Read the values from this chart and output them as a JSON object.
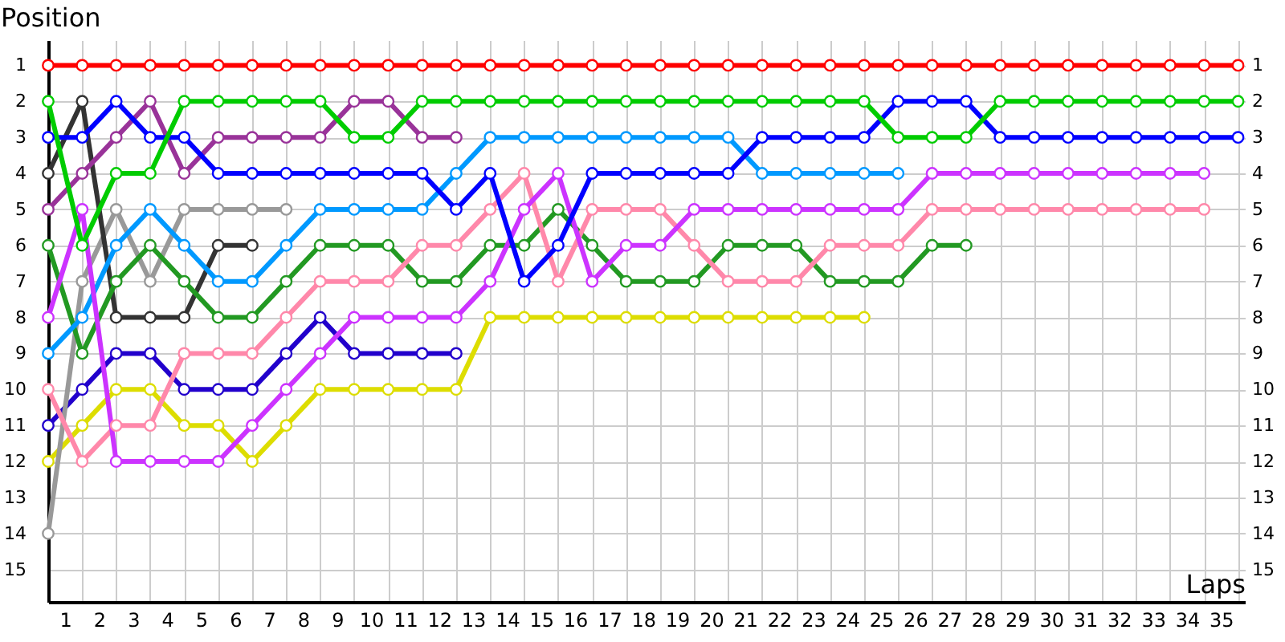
{
  "chart_data": {
    "type": "line",
    "xlabel": "Laps",
    "ylabel": "Position",
    "x": [
      0,
      1,
      2,
      3,
      4,
      5,
      6,
      7,
      8,
      9,
      10,
      11,
      12,
      13,
      14,
      15,
      16,
      17,
      18,
      19,
      20,
      21,
      22,
      23,
      24,
      25,
      26,
      27,
      28,
      29,
      30,
      31,
      32,
      33,
      34,
      35
    ],
    "series": [
      {
        "color": "#2200cc",
        "values": [
          11,
          10,
          9,
          9,
          10,
          10,
          10,
          9,
          8,
          9,
          9,
          9,
          9,
          null,
          null,
          null,
          null,
          null,
          null,
          null,
          null,
          null,
          null,
          null,
          null,
          null,
          null,
          null,
          null,
          null,
          null,
          null,
          null,
          null,
          null,
          null
        ]
      },
      {
        "color": "#dddd00",
        "values": [
          12,
          11,
          10,
          10,
          11,
          11,
          12,
          11,
          10,
          10,
          10,
          10,
          10,
          8,
          8,
          8,
          8,
          8,
          8,
          8,
          8,
          8,
          8,
          8,
          8,
          null,
          null,
          null,
          null,
          null,
          null,
          null,
          null,
          null,
          null,
          null
        ]
      },
      {
        "color": "#999999",
        "values": [
          14,
          7,
          5,
          7,
          5,
          5,
          5,
          5,
          null,
          null,
          null,
          null,
          null,
          null,
          null,
          null,
          null,
          null,
          null,
          null,
          null,
          null,
          null,
          null,
          null,
          null,
          null,
          null,
          null,
          null,
          null,
          null,
          null,
          null,
          null,
          null
        ]
      },
      {
        "color": "#333333",
        "values": [
          4,
          2,
          8,
          8,
          8,
          6,
          6,
          null,
          null,
          null,
          null,
          null,
          null,
          null,
          null,
          null,
          null,
          null,
          null,
          null,
          null,
          null,
          null,
          null,
          null,
          null,
          null,
          null,
          null,
          null,
          null,
          null,
          null,
          null,
          null,
          null
        ]
      },
      {
        "color": "#993399",
        "values": [
          5,
          4,
          3,
          2,
          4,
          3,
          3,
          3,
          3,
          2,
          2,
          3,
          3,
          null,
          null,
          null,
          null,
          null,
          null,
          null,
          null,
          null,
          null,
          null,
          null,
          null,
          null,
          null,
          null,
          null,
          null,
          null,
          null,
          null,
          null,
          null
        ]
      },
      {
        "color": "#229922",
        "values": [
          6,
          9,
          7,
          6,
          7,
          8,
          8,
          7,
          6,
          6,
          6,
          7,
          7,
          6,
          6,
          5,
          6,
          7,
          7,
          7,
          6,
          6,
          6,
          7,
          7,
          7,
          6,
          6,
          null,
          null,
          null,
          null,
          null,
          null,
          null,
          null
        ]
      },
      {
        "color": "#0099ff",
        "values": [
          9,
          8,
          6,
          5,
          6,
          7,
          7,
          6,
          5,
          5,
          5,
          5,
          4,
          3,
          3,
          3,
          3,
          3,
          3,
          3,
          3,
          4,
          4,
          4,
          4,
          4,
          null,
          null,
          null,
          null,
          null,
          null,
          null,
          null,
          null,
          null
        ]
      },
      {
        "color": "#ff88aa",
        "values": [
          10,
          12,
          11,
          11,
          9,
          9,
          9,
          8,
          7,
          7,
          7,
          6,
          6,
          5,
          4,
          7,
          5,
          5,
          5,
          6,
          7,
          7,
          7,
          6,
          6,
          6,
          5,
          5,
          5,
          5,
          5,
          5,
          5,
          5,
          5,
          null
        ]
      },
      {
        "color": "#cc33ff",
        "values": [
          8,
          5,
          12,
          12,
          12,
          12,
          11,
          10,
          9,
          8,
          8,
          8,
          8,
          7,
          5,
          4,
          7,
          6,
          6,
          5,
          5,
          5,
          5,
          5,
          5,
          5,
          4,
          4,
          4,
          4,
          4,
          4,
          4,
          4,
          4,
          null
        ]
      },
      {
        "color": "#0000ff",
        "values": [
          3,
          3,
          2,
          3,
          3,
          4,
          4,
          4,
          4,
          4,
          4,
          4,
          5,
          4,
          7,
          6,
          4,
          4,
          4,
          4,
          4,
          3,
          3,
          3,
          3,
          2,
          2,
          2,
          3,
          3,
          3,
          3,
          3,
          3,
          3,
          3
        ]
      },
      {
        "color": "#00cc00",
        "values": [
          2,
          6,
          4,
          4,
          2,
          2,
          2,
          2,
          2,
          3,
          3,
          2,
          2,
          2,
          2,
          2,
          2,
          2,
          2,
          2,
          2,
          2,
          2,
          2,
          2,
          3,
          3,
          3,
          2,
          2,
          2,
          2,
          2,
          2,
          2,
          2
        ]
      },
      {
        "color": "#ff0000",
        "values": [
          1,
          1,
          1,
          1,
          1,
          1,
          1,
          1,
          1,
          1,
          1,
          1,
          1,
          1,
          1,
          1,
          1,
          1,
          1,
          1,
          1,
          1,
          1,
          1,
          1,
          1,
          1,
          1,
          1,
          1,
          1,
          1,
          1,
          1,
          1,
          1
        ]
      }
    ],
    "xlim": [
      0,
      35.2
    ],
    "xticks": [
      {
        "value": 0,
        "label": null
      },
      {
        "value": 0.5,
        "label": "1"
      },
      {
        "value": 1,
        "label": null
      },
      {
        "value": 1.5,
        "label": "2"
      },
      {
        "value": 2,
        "label": null
      },
      {
        "value": 2.5,
        "label": "3"
      },
      {
        "value": 3,
        "label": null
      },
      {
        "value": 3.5,
        "label": "4"
      },
      {
        "value": 4,
        "label": null
      },
      {
        "value": 4.5,
        "label": "5"
      },
      {
        "value": 5,
        "label": null
      },
      {
        "value": 5.5,
        "label": "6"
      },
      {
        "value": 6,
        "label": null
      },
      {
        "value": 6.5,
        "label": "7"
      },
      {
        "value": 7,
        "label": null
      },
      {
        "value": 7.5,
        "label": "8"
      },
      {
        "value": 8,
        "label": null
      },
      {
        "value": 8.5,
        "label": "9"
      },
      {
        "value": 9,
        "label": null
      },
      {
        "value": 9.5,
        "label": "10"
      },
      {
        "value": 10,
        "label": null
      },
      {
        "value": 10.5,
        "label": "11"
      },
      {
        "value": 11,
        "label": null
      },
      {
        "value": 11.5,
        "label": "12"
      },
      {
        "value": 12,
        "label": null
      },
      {
        "value": 12.5,
        "label": "13"
      },
      {
        "value": 13,
        "label": null
      },
      {
        "value": 13.5,
        "label": "14"
      },
      {
        "value": 14,
        "label": null
      },
      {
        "value": 14.5,
        "label": "15"
      },
      {
        "value": 15,
        "label": null
      },
      {
        "value": 15.5,
        "label": "16"
      },
      {
        "value": 16,
        "label": null
      },
      {
        "value": 16.5,
        "label": "17"
      },
      {
        "value": 17,
        "label": null
      },
      {
        "value": 17.5,
        "label": "18"
      },
      {
        "value": 18,
        "label": null
      },
      {
        "value": 18.5,
        "label": "19"
      },
      {
        "value": 19,
        "label": null
      },
      {
        "value": 19.5,
        "label": "20"
      },
      {
        "value": 20,
        "label": null
      },
      {
        "value": 20.5,
        "label": "21"
      },
      {
        "value": 21,
        "label": null
      },
      {
        "value": 21.5,
        "label": "22"
      },
      {
        "value": 22,
        "label": null
      },
      {
        "value": 22.5,
        "label": "23"
      },
      {
        "value": 23,
        "label": null
      },
      {
        "value": 23.5,
        "label": "24"
      },
      {
        "value": 24,
        "label": null
      },
      {
        "value": 24.5,
        "label": "25"
      },
      {
        "value": 25,
        "label": null
      },
      {
        "value": 25.5,
        "label": "26"
      },
      {
        "value": 26,
        "label": null
      },
      {
        "value": 26.5,
        "label": "27"
      },
      {
        "value": 27,
        "label": null
      },
      {
        "value": 27.5,
        "label": "28"
      },
      {
        "value": 28,
        "label": null
      },
      {
        "value": 28.5,
        "label": "29"
      },
      {
        "value": 29,
        "label": null
      },
      {
        "value": 29.5,
        "label": "30"
      },
      {
        "value": 30,
        "label": null
      },
      {
        "value": 30.5,
        "label": "31"
      },
      {
        "value": 31,
        "label": null
      },
      {
        "value": 31.5,
        "label": "32"
      },
      {
        "value": 32,
        "label": null
      },
      {
        "value": 32.5,
        "label": "33"
      },
      {
        "value": 33,
        "label": null
      },
      {
        "value": 33.5,
        "label": "34"
      },
      {
        "value": 34,
        "label": null
      },
      {
        "value": 34.5,
        "label": "35"
      },
      {
        "value": 35,
        "label": null
      }
    ],
    "ylim": [
      15.9,
      0.3
    ],
    "yticks": [
      1,
      2,
      3,
      4,
      5,
      6,
      7,
      8,
      9,
      10,
      11,
      12,
      13,
      14,
      15
    ],
    "y2lim": [
      15.9,
      0.3
    ],
    "y2ticks": [
      1,
      2,
      3,
      4,
      5,
      6,
      7,
      8,
      9,
      10,
      11,
      12,
      13,
      14,
      15
    ],
    "grid": true,
    "legend": false,
    "marker": "circle",
    "line_style": "solid"
  }
}
